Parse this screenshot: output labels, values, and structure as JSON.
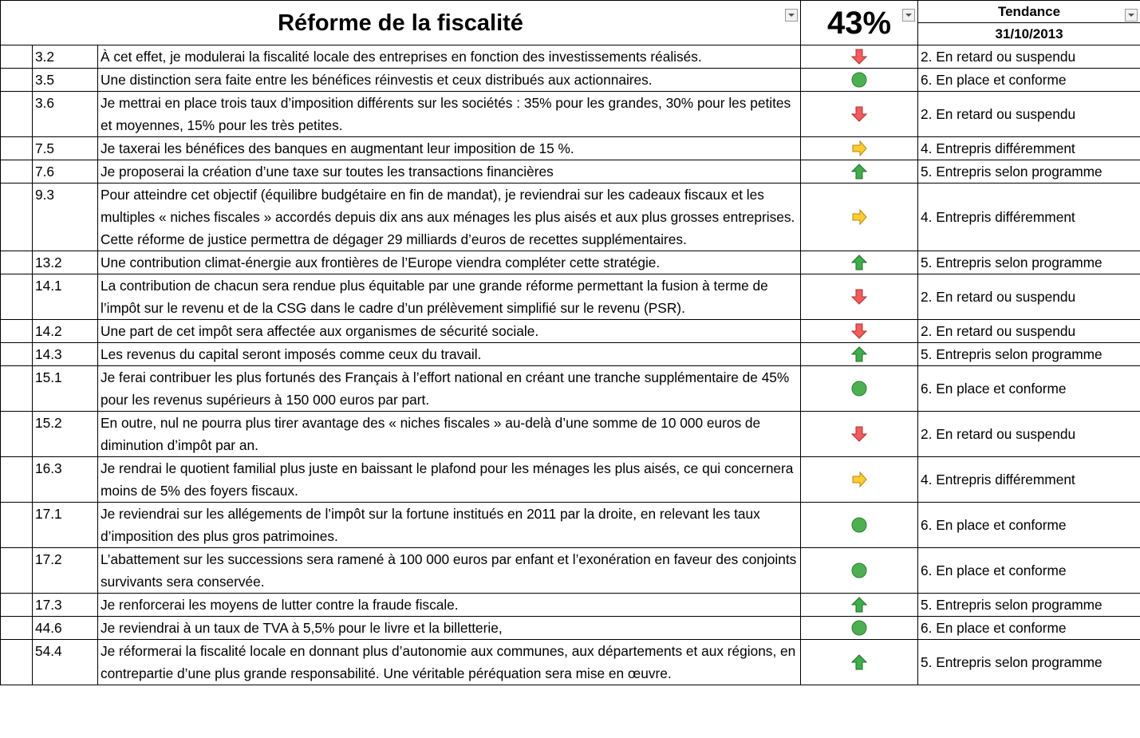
{
  "header": {
    "title": "Réforme de la fiscalité",
    "percent": "43%",
    "trend_label": "Tendance",
    "date": "31/10/2013"
  },
  "table": {
    "rows": [
      {
        "id": "3.2",
        "text": "À cet effet, je modulerai la fiscalité locale des entreprises en fonction des investissements réalisés.",
        "icon": "arrow-down",
        "status": "2. En retard ou suspendu"
      },
      {
        "id": "3.5",
        "text": "Une distinction sera faite entre les bénéfices réinvestis et ceux distribués aux actionnaires.",
        "icon": "circle",
        "status": "6. En place et conforme"
      },
      {
        "id": "3.6",
        "text": "Je mettrai en place trois taux d’imposition différents sur les sociétés : 35% pour les grandes, 30% pour les petites et moyennes, 15% pour les très petites.",
        "icon": "arrow-down",
        "status": "2. En retard ou suspendu"
      },
      {
        "id": "7.5",
        "text": "Je taxerai les bénéfices des banques en augmentant leur imposition de 15 %.",
        "icon": "arrow-right",
        "status": "4. Entrepris différemment"
      },
      {
        "id": "7.6",
        "text": "Je proposerai la création d’une taxe sur toutes les transactions financières",
        "icon": "arrow-up",
        "status": "5. Entrepris selon programme"
      },
      {
        "id": "9.3",
        "text": "Pour atteindre cet objectif (équilibre budgétaire en fin de mandat), je reviendrai sur les cadeaux fiscaux et les multiples « niches fiscales » accordés depuis dix ans aux ménages les plus aisés et aux plus grosses entreprises. Cette réforme de justice permettra de dégager 29 milliards d’euros de recettes supplémentaires.",
        "icon": "arrow-right",
        "status": "4. Entrepris différemment"
      },
      {
        "id": "13.2",
        "text": "Une contribution climat-énergie aux frontières de l’Europe viendra compléter cette stratégie.",
        "icon": "arrow-up",
        "status": "5. Entrepris selon programme"
      },
      {
        "id": "14.1",
        "text": "La contribution de chacun sera rendue plus équitable par une grande réforme permettant la fusion à terme de l’impôt sur le revenu et de la CSG dans le cadre d’un prélèvement simplifié sur le revenu (PSR).",
        "icon": "arrow-down",
        "status": "2. En retard ou suspendu"
      },
      {
        "id": "14.2",
        "text": "Une part de cet impôt sera affectée aux organismes de sécurité sociale.",
        "icon": "arrow-down",
        "status": "2. En retard ou suspendu"
      },
      {
        "id": "14.3",
        "text": "Les revenus du capital seront imposés comme ceux du travail.",
        "icon": "arrow-up",
        "status": "5. Entrepris selon programme"
      },
      {
        "id": "15.1",
        "text": "Je ferai contribuer les plus fortunés des Français à l’effort national en créant une tranche supplémentaire de 45% pour les revenus supérieurs à 150 000 euros par part.",
        "icon": "circle",
        "status": "6. En place et conforme"
      },
      {
        "id": "15.2",
        "text": "En outre, nul ne pourra plus tirer avantage des « niches fiscales » au-delà d’une somme de 10 000 euros de diminution d’impôt par an.",
        "icon": "arrow-down",
        "status": "2. En retard ou suspendu"
      },
      {
        "id": "16.3",
        "text": "Je rendrai le quotient familial plus juste en baissant le plafond pour les ménages les plus aisés, ce qui concernera moins de 5% des foyers fiscaux.",
        "icon": "arrow-right",
        "status": "4. Entrepris différemment"
      },
      {
        "id": "17.1",
        "text": "Je reviendrai sur les allégements de l’impôt sur la fortune institués en 2011 par la droite, en relevant les taux d’imposition des plus gros patrimoines.",
        "icon": "circle",
        "status": "6. En place et conforme"
      },
      {
        "id": "17.2",
        "text": "L’abattement sur les successions sera ramené à 100 000 euros par enfant et l’exonération en faveur des conjoints survivants sera conservée.",
        "icon": "circle",
        "status": "6. En place et conforme"
      },
      {
        "id": "17.3",
        "text": "Je renforcerai les moyens de lutter contre la fraude fiscale.",
        "icon": "arrow-up",
        "status": "5. Entrepris selon programme"
      },
      {
        "id": "44.6",
        "text": "Je reviendrai à un taux de TVA à 5,5% pour le livre et la billetterie,",
        "icon": "circle",
        "status": "6. En place et conforme"
      },
      {
        "id": "54.4",
        "text": "Je réformerai la fiscalité locale en donnant plus d’autonomie aux communes, aux départements et aux régions, en contrepartie d’une plus grande responsabilité. Une véritable péréquation sera mise en œuvre.",
        "icon": "arrow-up",
        "status": "5. Entrepris selon programme"
      }
    ]
  }
}
